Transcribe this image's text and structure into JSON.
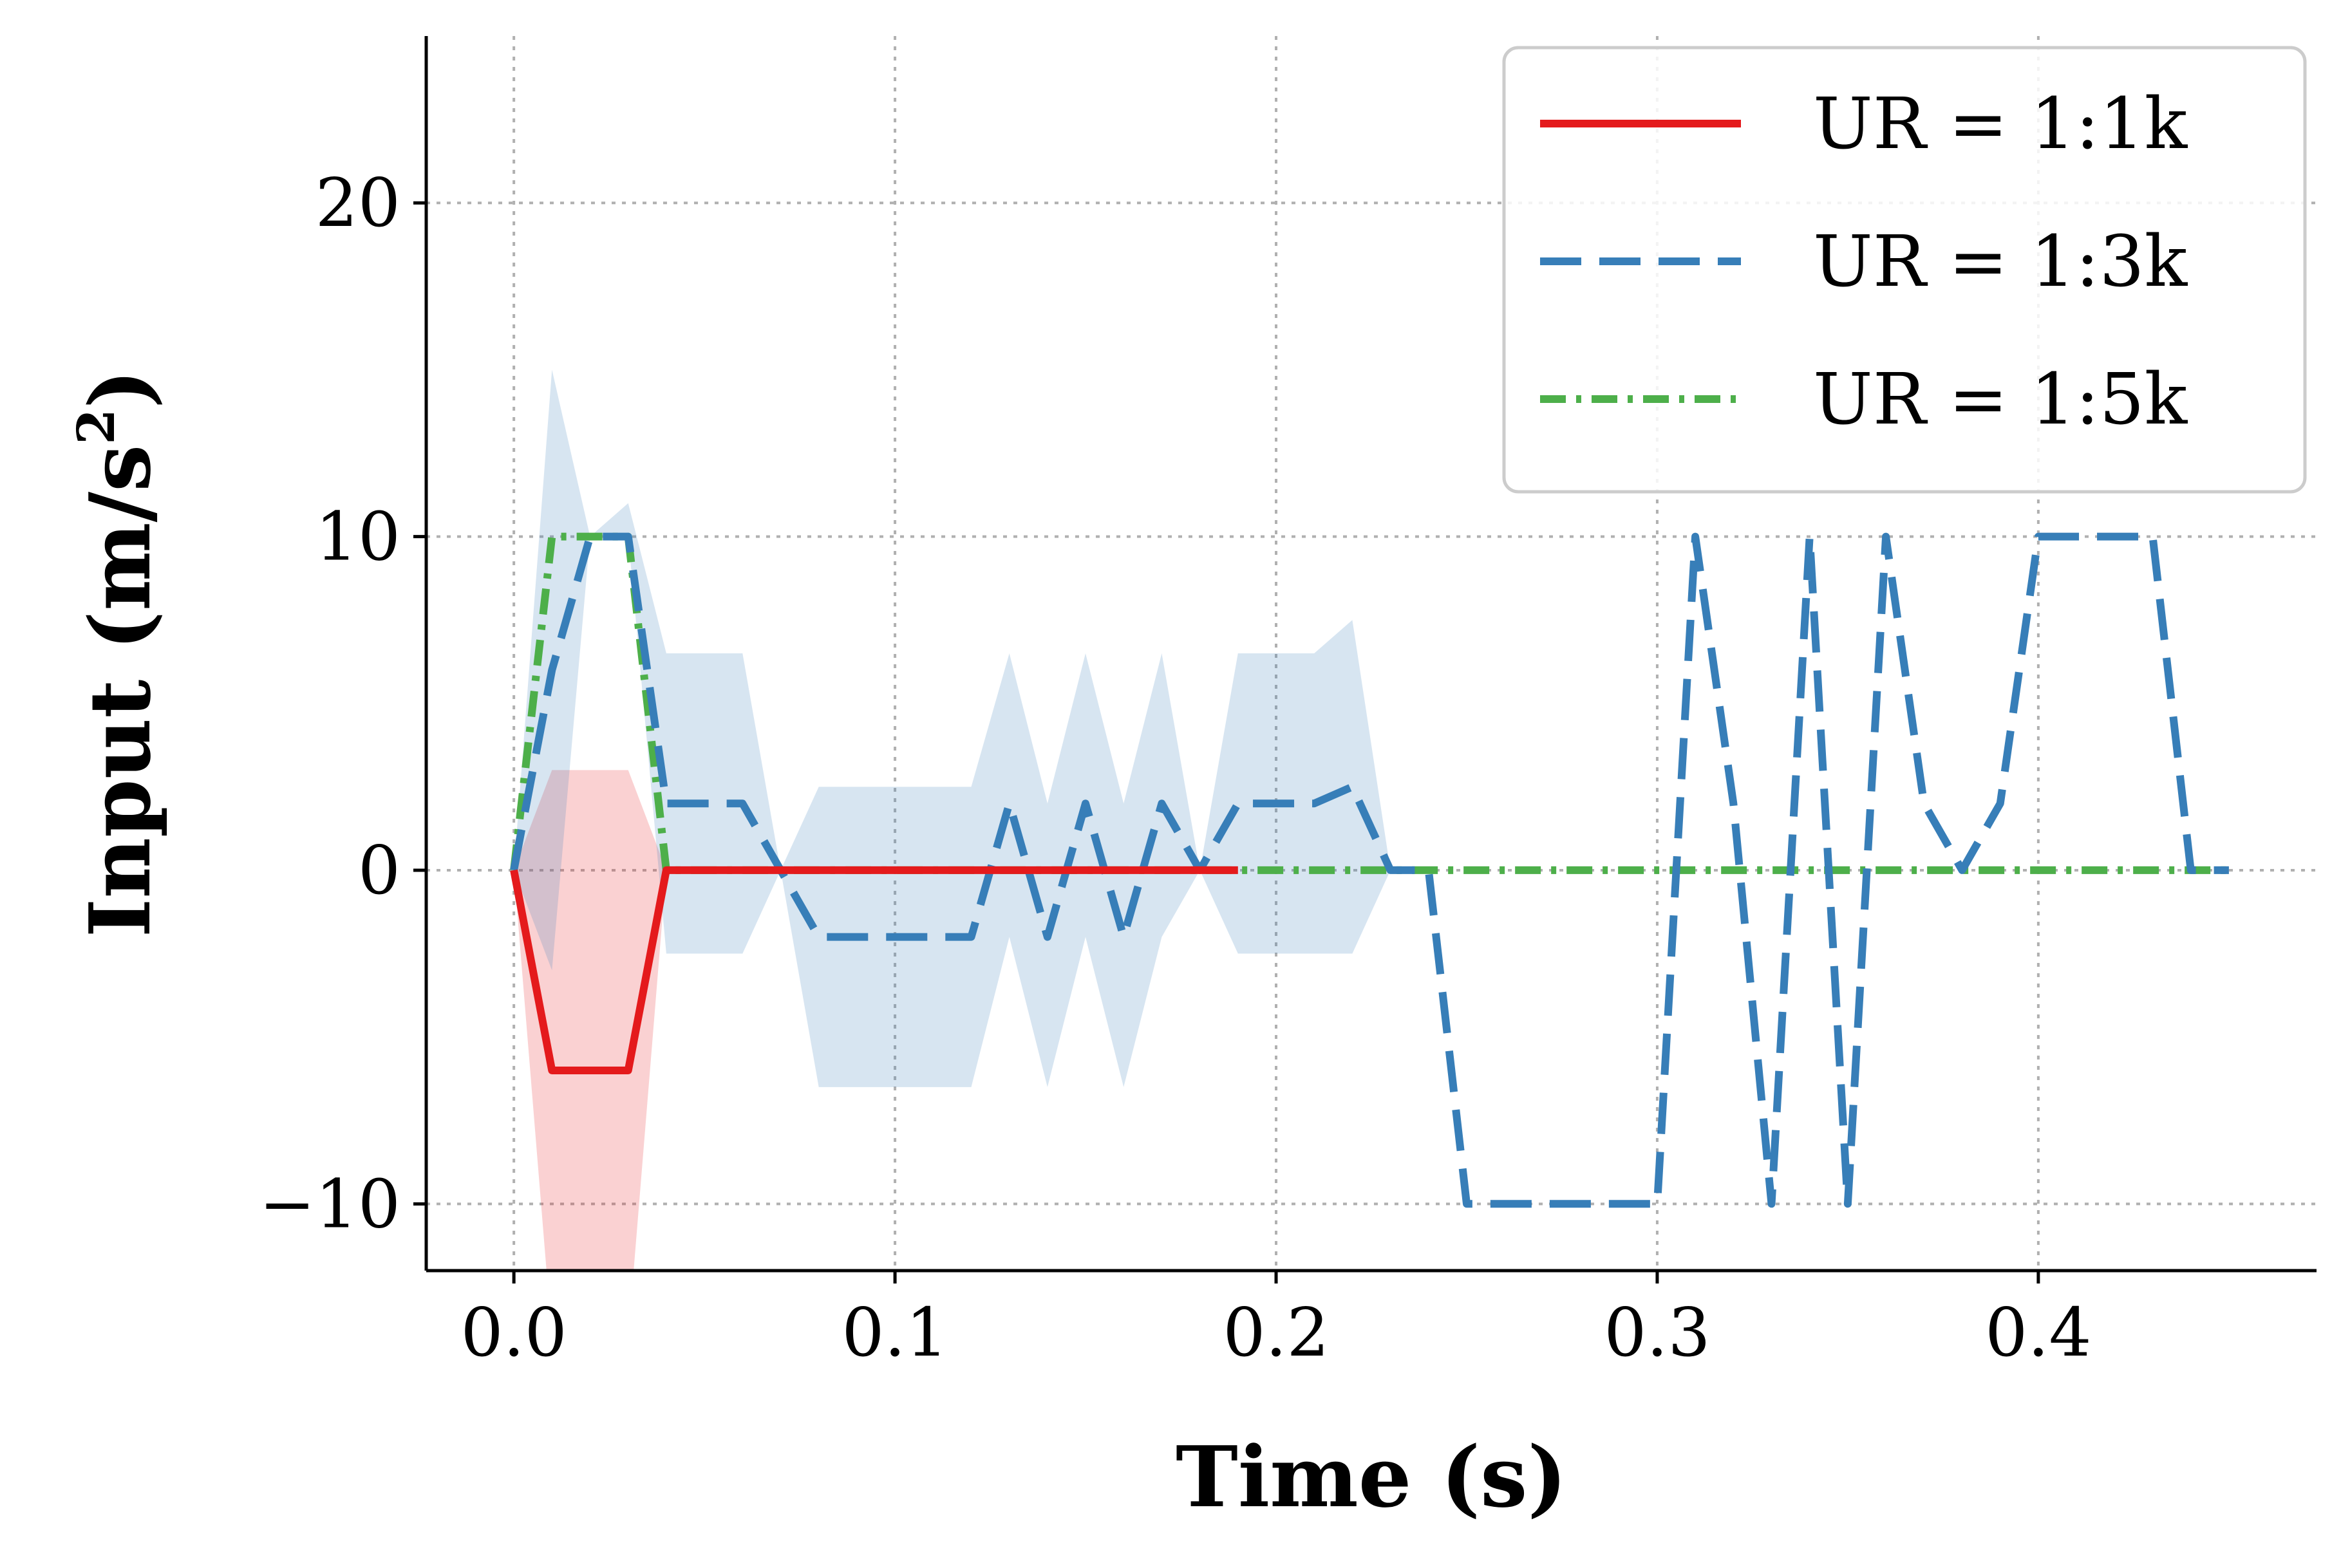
{
  "chart_data": {
    "type": "line",
    "title": "",
    "xlabel": "Time (s)",
    "ylabel": "Input (m/s",
    "ylabel_sup": "2",
    "ylabel_end": ")",
    "xlim": [
      -0.023,
      0.473
    ],
    "ylim": [
      -12,
      25
    ],
    "xticks": [
      0.0,
      0.1,
      0.2,
      0.3,
      0.4
    ],
    "xtick_labels": [
      "0.0",
      "0.1",
      "0.2",
      "0.3",
      "0.4"
    ],
    "yticks": [
      -10,
      0,
      10,
      20
    ],
    "ytick_labels": [
      "−10",
      "0",
      "10",
      "20"
    ],
    "grid": true,
    "legend_placement": "top-right",
    "series": [
      {
        "name": "UR = 1:1k",
        "color": "#e41a1c",
        "style": "solid",
        "x": [
          0.0,
          0.01,
          0.02,
          0.03,
          0.04,
          0.05,
          0.06,
          0.07,
          0.08,
          0.09,
          0.1,
          0.11,
          0.12,
          0.13,
          0.14,
          0.15,
          0.16,
          0.17,
          0.18,
          0.19
        ],
        "y": [
          0,
          -6,
          -6,
          -6,
          0,
          0,
          0,
          0,
          0,
          0,
          0,
          0,
          0,
          0,
          0,
          0,
          0,
          0,
          0,
          0
        ],
        "band": {
          "x": [
            0.0,
            0.01,
            0.02,
            0.03,
            0.04
          ],
          "lower": [
            0,
            -14,
            -14,
            -14,
            0
          ],
          "upper": [
            0,
            3,
            3,
            3,
            0
          ]
        }
      },
      {
        "name": "UR = 1:3k",
        "color": "#377eb8",
        "style": "dashed",
        "x": [
          0.0,
          0.01,
          0.02,
          0.03,
          0.04,
          0.05,
          0.06,
          0.07,
          0.08,
          0.09,
          0.1,
          0.11,
          0.12,
          0.13,
          0.14,
          0.15,
          0.16,
          0.17,
          0.18,
          0.19,
          0.2,
          0.21,
          0.22,
          0.23,
          0.24,
          0.25,
          0.26,
          0.27,
          0.28,
          0.29,
          0.3,
          0.31,
          0.32,
          0.33,
          0.34,
          0.35,
          0.36,
          0.37,
          0.38,
          0.39,
          0.4,
          0.41,
          0.42,
          0.43,
          0.44,
          0.45
        ],
        "y": [
          0,
          6,
          10,
          10,
          2,
          2,
          2,
          0,
          -2,
          -2,
          -2,
          -2,
          -2,
          2,
          -2,
          2,
          -2,
          2,
          0,
          2,
          2,
          2,
          2.5,
          0,
          0,
          -10,
          -10,
          -10,
          -10,
          -10,
          -10,
          10,
          2,
          -10,
          10,
          -10,
          10,
          2,
          0,
          2,
          10,
          10,
          10,
          10,
          0,
          0
        ],
        "band": {
          "x": [
            0.0,
            0.01,
            0.02,
            0.03,
            0.04,
            0.05,
            0.06,
            0.07,
            0.08,
            0.09,
            0.1,
            0.11,
            0.12,
            0.13,
            0.14,
            0.15,
            0.16,
            0.17,
            0.18,
            0.19,
            0.2,
            0.21,
            0.22,
            0.23
          ],
          "lower": [
            0,
            -3,
            10,
            10,
            -2.5,
            -2.5,
            -2.5,
            0,
            -6.5,
            -6.5,
            -6.5,
            -6.5,
            -6.5,
            -2,
            -6.5,
            -2,
            -6.5,
            -2,
            0,
            -2.5,
            -2.5,
            -2.5,
            -2.5,
            0
          ],
          "upper": [
            0,
            15,
            10,
            11,
            6.5,
            6.5,
            6.5,
            0,
            2.5,
            2.5,
            2.5,
            2.5,
            2.5,
            6.5,
            2,
            6.5,
            2,
            6.5,
            0,
            6.5,
            6.5,
            6.5,
            7.5,
            0
          ]
        }
      },
      {
        "name": "UR = 1:5k",
        "color": "#4daf4a",
        "style": "dashdot",
        "x": [
          0.0,
          0.01,
          0.02,
          0.03,
          0.04,
          0.05,
          0.06,
          0.07,
          0.08,
          0.09,
          0.1,
          0.11,
          0.12,
          0.13,
          0.14,
          0.15,
          0.16,
          0.17,
          0.18,
          0.19,
          0.2,
          0.21,
          0.22,
          0.23,
          0.24,
          0.25,
          0.26,
          0.27,
          0.28,
          0.29,
          0.3,
          0.31,
          0.32,
          0.33,
          0.34,
          0.35,
          0.36,
          0.37,
          0.38,
          0.39,
          0.4,
          0.41,
          0.42,
          0.43,
          0.44,
          0.45
        ],
        "y": [
          0,
          10,
          10,
          10,
          0,
          0,
          0,
          0,
          0,
          0,
          0,
          0,
          0,
          0,
          0,
          0,
          0,
          0,
          0,
          0,
          0,
          0,
          0,
          0,
          0,
          0,
          0,
          0,
          0,
          0,
          0,
          0,
          0,
          0,
          0,
          0,
          0,
          0,
          0,
          0,
          0,
          0,
          0,
          0,
          0,
          0
        ]
      }
    ]
  }
}
